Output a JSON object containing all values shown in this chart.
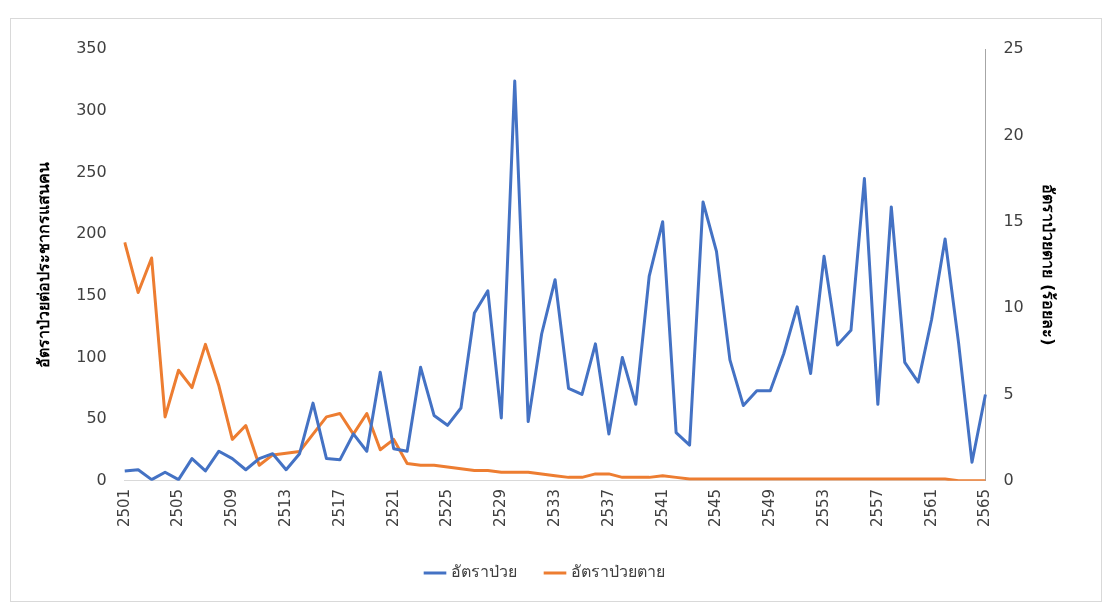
{
  "chart_data": {
    "type": "line",
    "categories": [
      "2501",
      null,
      null,
      null,
      "2505",
      null,
      null,
      null,
      "2509",
      null,
      null,
      null,
      "2513",
      null,
      null,
      null,
      "2517",
      null,
      null,
      null,
      "2521",
      null,
      null,
      null,
      "2525",
      null,
      null,
      null,
      "2529",
      null,
      null,
      null,
      "2533",
      null,
      null,
      null,
      "2537",
      null,
      null,
      null,
      "2541",
      null,
      null,
      null,
      "2545",
      null,
      null,
      null,
      "2549",
      null,
      null,
      null,
      "2553",
      null,
      null,
      null,
      "2557",
      null,
      null,
      null,
      "2561",
      null,
      null,
      null,
      "2565"
    ],
    "series": [
      {
        "name": "อัตราป่วย",
        "color": "#4472c4",
        "values": [
          8,
          9,
          1,
          7,
          1,
          18,
          8,
          24,
          18,
          9,
          18,
          22,
          9,
          22,
          63,
          18,
          17,
          38,
          24,
          88,
          26,
          24,
          92,
          53,
          45,
          59,
          136,
          154,
          51,
          324,
          48,
          119,
          163,
          75,
          70,
          111,
          38,
          100,
          62,
          166,
          210,
          39,
          29,
          226,
          186,
          98,
          61,
          73,
          73,
          103,
          141,
          87,
          182,
          110,
          122,
          245,
          62,
          222,
          96,
          80,
          131,
          196,
          112,
          15,
          70
        ]
      },
      {
        "name": "อัตราป่วยตาย",
        "color": "#ed7d31",
        "axis": "y2",
        "values": [
          13.8,
          10.9,
          12.9,
          3.7,
          6.4,
          5.4,
          7.9,
          5.5,
          2.4,
          3.2,
          0.9,
          1.5,
          1.6,
          1.7,
          2.7,
          3.7,
          3.9,
          2.7,
          3.9,
          1.8,
          2.4,
          1.0,
          0.9,
          0.9,
          0.8,
          0.7,
          0.6,
          0.6,
          0.5,
          0.5,
          0.5,
          0.4,
          0.3,
          0.2,
          0.2,
          0.4,
          0.4,
          0.2,
          0.2,
          0.2,
          0.3,
          0.2,
          0.1,
          0.1,
          0.1,
          0.1,
          0.1,
          0.1,
          0.1,
          0.1,
          0.1,
          0.1,
          0.1,
          0.1,
          0.1,
          0.1,
          0.1,
          0.1,
          0.1,
          0.1,
          0.1,
          0.1,
          0.0,
          0.0,
          0.0
        ]
      }
    ],
    "ylabel": "อัตราป่วยต่อประชากรแสนคน",
    "y2label": "อัตราป่วยตาย (ร้อยละ)",
    "ylim": [
      0,
      350
    ],
    "yticks": [
      0,
      50,
      100,
      150,
      200,
      250,
      300,
      350
    ],
    "y2lim": [
      0,
      25
    ],
    "y2ticks": [
      0,
      5,
      10,
      15,
      20,
      25
    ],
    "legend": "bottom",
    "marker": "none"
  }
}
